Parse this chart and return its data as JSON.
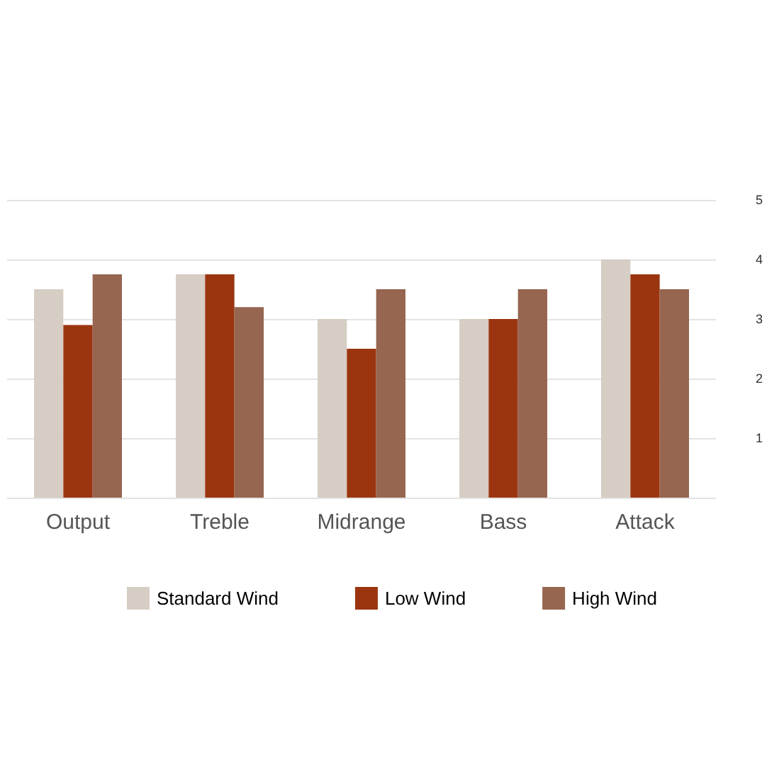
{
  "chart_data": {
    "type": "bar",
    "categories": [
      "Output",
      "Treble",
      "Midrange",
      "Bass",
      "Attack"
    ],
    "series": [
      {
        "name": "Standard Wind",
        "color": "#d6cdc4",
        "values": [
          3.5,
          3.75,
          3,
          3,
          4
        ]
      },
      {
        "name": "Low Wind",
        "color": "#9b3510",
        "values": [
          2.9,
          3.75,
          2.5,
          3,
          3.75
        ]
      },
      {
        "name": "High Wind",
        "color": "#966650",
        "values": [
          3.75,
          3.2,
          3.5,
          3.5,
          3.5
        ]
      }
    ],
    "ylim": [
      0,
      5
    ],
    "yticks": [
      {
        "value": 0,
        "label": null
      },
      1,
      2,
      3,
      4,
      5
    ],
    "grid": "y",
    "legend": "bottom"
  }
}
